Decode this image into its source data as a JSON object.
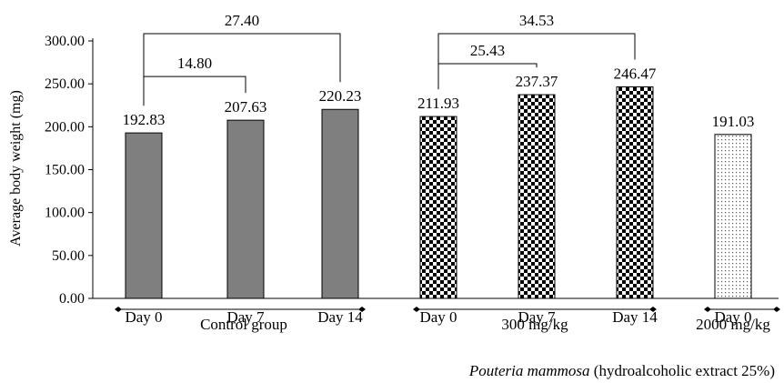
{
  "chart_data": {
    "type": "bar",
    "ylabel": "Average body weight (mg)",
    "ylim": [
      0,
      300
    ],
    "yticks": [
      "0.00",
      "50.00",
      "100.00",
      "150.00",
      "200.00",
      "250.00",
      "300.00"
    ],
    "grid": false,
    "bars": [
      {
        "category": "Day 0",
        "value": 192.83,
        "label": "192.83",
        "group": 0,
        "pattern": "solid"
      },
      {
        "category": "Day 7",
        "value": 207.63,
        "label": "207.63",
        "group": 0,
        "pattern": "solid"
      },
      {
        "category": "Day 14",
        "value": 220.23,
        "label": "220.23",
        "group": 0,
        "pattern": "solid"
      },
      {
        "category": "Day 0",
        "value": 211.93,
        "label": "211.93",
        "group": 1,
        "pattern": "checker"
      },
      {
        "category": "Day 7",
        "value": 237.37,
        "label": "237.37",
        "group": 1,
        "pattern": "checker"
      },
      {
        "category": "Day 14",
        "value": 246.47,
        "label": "246.47",
        "group": 1,
        "pattern": "checker"
      },
      {
        "category": "Day 0",
        "value": 191.03,
        "label": "191.03",
        "group": 2,
        "pattern": "dots"
      }
    ],
    "groups": [
      "Control group",
      "300 mg/kg",
      "2000 mg/kg"
    ],
    "footnote_italic": "Pouteria mammosa",
    "footnote_rest": " (hydroalcoholic extract 25%)",
    "differences": [
      {
        "from": 0,
        "to": 1,
        "label": "14.80",
        "level": 250
      },
      {
        "from": 0,
        "to": 2,
        "label": "27.40",
        "level": 300
      },
      {
        "from": 3,
        "to": 4,
        "label": "25.43",
        "level": 265
      },
      {
        "from": 3,
        "to": 5,
        "label": "34.53",
        "level": 300
      }
    ],
    "colors": {
      "solid": "#7f7f7f",
      "axis": "#000000"
    }
  }
}
